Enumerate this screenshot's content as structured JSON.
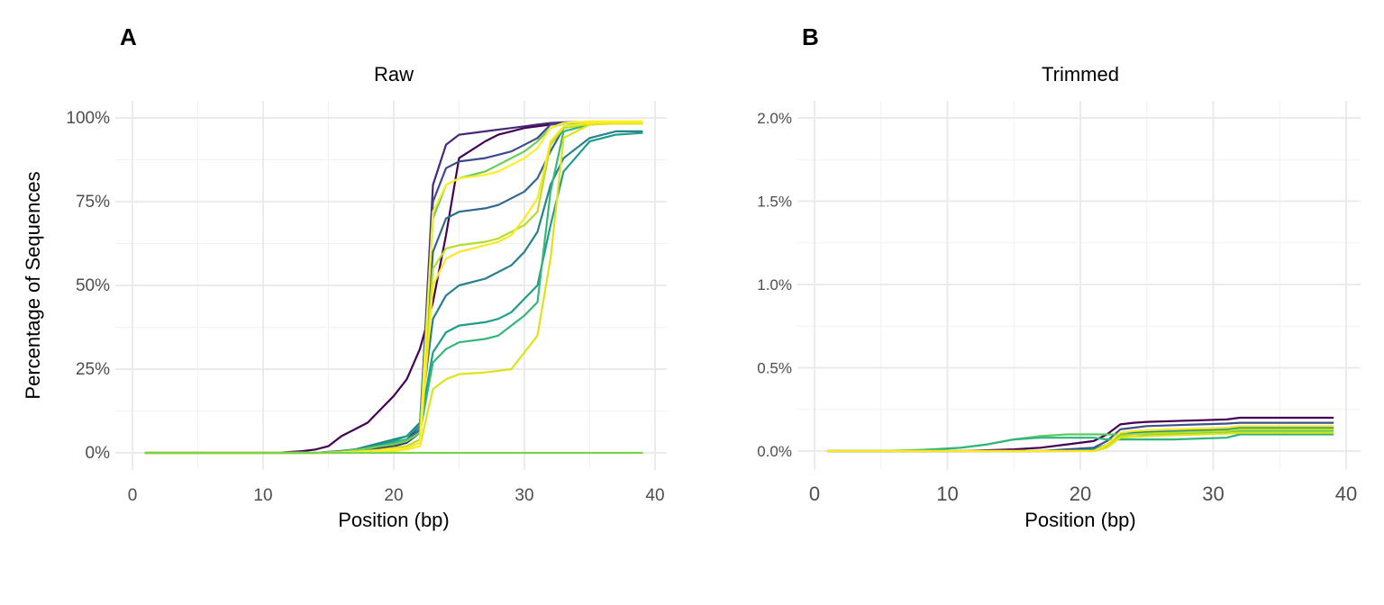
{
  "chart_data": [
    {
      "panel": "A",
      "type": "line",
      "title": "Raw",
      "xlabel": "Position (bp)",
      "ylabel": "Percentage of Sequences",
      "xlim": [
        0,
        41
      ],
      "ylim": [
        0,
        100
      ],
      "x_ticks": [
        0,
        10,
        20,
        30,
        40
      ],
      "y_ticks": [
        0,
        25,
        50,
        75,
        100
      ],
      "y_tick_labels": [
        "0%",
        "25%",
        "50%",
        "75%",
        "100%"
      ],
      "grid": true,
      "legend": "none",
      "x": [
        1,
        3,
        5,
        7,
        9,
        11,
        13,
        14,
        15,
        16,
        17,
        18,
        19,
        20,
        21,
        22,
        23,
        24,
        25,
        27,
        28,
        29,
        30,
        31,
        32,
        33,
        35,
        37,
        39
      ],
      "series": [
        {
          "color": "#440154",
          "values": [
            0,
            0,
            0,
            0,
            0,
            0,
            0.5,
            1,
            2,
            5,
            7,
            9,
            13,
            17,
            22,
            31,
            45,
            65,
            88,
            93,
            95,
            96,
            97,
            97.5,
            98,
            98.5,
            98.6,
            98.6,
            98.6
          ]
        },
        {
          "color": "#482878",
          "values": [
            0,
            0,
            0,
            0,
            0,
            0,
            0,
            0,
            0.2,
            0.4,
            0.6,
            1,
            1.5,
            2,
            3,
            6,
            80,
            92,
            95,
            96,
            96.5,
            97,
            97.5,
            98,
            98.5,
            98.7,
            98.8,
            98.8,
            98.8
          ]
        },
        {
          "color": "#3e4a89",
          "values": [
            0,
            0,
            0,
            0,
            0,
            0,
            0,
            0,
            0.3,
            0.6,
            1,
            1.5,
            2,
            3,
            4,
            8,
            75,
            85,
            87,
            88,
            89,
            90,
            92,
            94,
            98,
            98.5,
            98.7,
            98.7,
            98.7
          ]
        },
        {
          "color": "#31688e",
          "values": [
            0,
            0,
            0,
            0,
            0,
            0,
            0,
            0,
            0.2,
            0.5,
            1,
            1.5,
            2,
            2.5,
            3.5,
            7,
            60,
            70,
            72,
            73,
            74,
            76,
            78,
            82,
            90,
            97,
            98.5,
            98.6,
            98.6
          ]
        },
        {
          "color": "#26828e",
          "values": [
            0,
            0,
            0,
            0,
            0,
            0,
            0,
            0,
            0.2,
            0.5,
            1,
            2,
            3,
            4,
            5,
            9,
            40,
            47,
            50,
            52,
            54,
            56,
            60,
            66,
            80,
            88,
            94,
            96,
            96
          ]
        },
        {
          "color": "#1f9e89",
          "values": [
            0,
            0,
            0,
            0,
            0,
            0,
            0,
            0,
            0.2,
            0.4,
            1,
            1.5,
            2.5,
            3.5,
            5,
            8,
            30,
            36,
            38,
            39,
            40,
            42,
            46,
            50,
            68,
            84,
            93,
            95,
            95.5
          ]
        },
        {
          "color": "#35b779",
          "values": [
            0,
            0,
            0,
            0,
            0,
            0,
            0,
            0,
            0.2,
            0.4,
            0.8,
            1.5,
            2,
            3,
            4,
            6,
            27,
            31,
            33,
            34,
            35,
            38,
            41,
            45,
            78,
            96,
            98,
            98.5,
            98.5
          ]
        },
        {
          "color": "#6ece58",
          "values": [
            0,
            0,
            0,
            0,
            0,
            0,
            0,
            0,
            0.2,
            0.4,
            0.8,
            1.2,
            2,
            2.5,
            3.5,
            6,
            70,
            80,
            82,
            84,
            86,
            88,
            90,
            93,
            97,
            98.3,
            98.5,
            98.5,
            98.5
          ]
        },
        {
          "color": "#b5de2b",
          "values": [
            0,
            0,
            0,
            0,
            0,
            0,
            0,
            0,
            0.1,
            0.2,
            0.4,
            0.6,
            1,
            1.5,
            2,
            4,
            55,
            61,
            62,
            63,
            64,
            66,
            68,
            72,
            92,
            97,
            98.2,
            98.3,
            98.3
          ]
        },
        {
          "color": "#dde318",
          "values": [
            0,
            0,
            0,
            0,
            0,
            0,
            0,
            0,
            0,
            0,
            0,
            0.2,
            0.4,
            0.6,
            1,
            2,
            19,
            22,
            23.5,
            24,
            24.5,
            25,
            30,
            35,
            58,
            94,
            98,
            98.3,
            98.3
          ]
        },
        {
          "color": "#fde725",
          "values": [
            0,
            0,
            0,
            0,
            0,
            0,
            0,
            0,
            0,
            0.2,
            0.3,
            0.5,
            0.8,
            1.2,
            1.5,
            3,
            50,
            58,
            60,
            62,
            63,
            65,
            70,
            76,
            93,
            97.5,
            98.5,
            98.6,
            98.6
          ]
        },
        {
          "color": "#ffef2a",
          "values": [
            0,
            0,
            0,
            0,
            0,
            0,
            0,
            0,
            0,
            0.1,
            0.2,
            0.3,
            0.5,
            0.8,
            1,
            2,
            72,
            80,
            82,
            83,
            84,
            86,
            88,
            91,
            97,
            98.5,
            99,
            99,
            99
          ]
        },
        {
          "color": "#7ad151",
          "values": [
            0,
            0,
            0,
            0,
            0,
            0,
            0,
            0,
            0,
            0,
            0,
            0,
            0,
            0,
            0,
            0,
            0,
            0,
            0,
            0,
            0,
            0,
            0,
            0,
            0,
            0,
            0,
            0,
            0
          ]
        }
      ]
    },
    {
      "panel": "B",
      "type": "line",
      "title": "Trimmed",
      "xlabel": "Position (bp)",
      "ylabel": "",
      "xlim": [
        0,
        41
      ],
      "ylim": [
        0,
        2
      ],
      "x_ticks": [
        0,
        10,
        20,
        30,
        40
      ],
      "y_ticks": [
        0,
        0.5,
        1,
        1.5,
        2
      ],
      "y_tick_labels": [
        "0.0%",
        "0.5%",
        "1.0%",
        "1.5%",
        "2.0%"
      ],
      "grid": true,
      "legend": "none",
      "x": [
        1,
        3,
        5,
        7,
        9,
        11,
        13,
        15,
        17,
        19,
        21,
        22,
        23,
        24,
        25,
        27,
        29,
        31,
        32,
        33,
        35,
        37,
        39
      ],
      "series": [
        {
          "color": "#440154",
          "values": [
            0,
            0,
            0,
            0,
            0,
            0,
            0.005,
            0.01,
            0.02,
            0.04,
            0.06,
            0.1,
            0.16,
            0.17,
            0.175,
            0.18,
            0.185,
            0.19,
            0.2,
            0.2,
            0.2,
            0.2,
            0.2
          ]
        },
        {
          "color": "#3b528b",
          "values": [
            0,
            0,
            0,
            0,
            0,
            0,
            0,
            0,
            0,
            0.01,
            0.02,
            0.06,
            0.13,
            0.14,
            0.15,
            0.155,
            0.16,
            0.165,
            0.17,
            0.17,
            0.17,
            0.17,
            0.17
          ]
        },
        {
          "color": "#21918c",
          "values": [
            0,
            0,
            0,
            0,
            0,
            0,
            0,
            0,
            0,
            0,
            0.01,
            0.04,
            0.1,
            0.11,
            0.115,
            0.12,
            0.125,
            0.13,
            0.14,
            0.14,
            0.14,
            0.14,
            0.14
          ]
        },
        {
          "color": "#5ec962",
          "values": [
            0,
            0,
            0,
            0.005,
            0.01,
            0.02,
            0.04,
            0.07,
            0.09,
            0.1,
            0.1,
            0.1,
            0.1,
            0.1,
            0.1,
            0.105,
            0.11,
            0.115,
            0.12,
            0.12,
            0.12,
            0.12,
            0.12
          ]
        },
        {
          "color": "#2fb47c",
          "values": [
            0,
            0,
            0,
            0,
            0.01,
            0.02,
            0.04,
            0.07,
            0.08,
            0.08,
            0.08,
            0.07,
            0.07,
            0.07,
            0.07,
            0.07,
            0.075,
            0.08,
            0.1,
            0.1,
            0.1,
            0.1,
            0.1
          ]
        },
        {
          "color": "#b8de29",
          "values": [
            0,
            0,
            0,
            0,
            0,
            0,
            0,
            0,
            0,
            0,
            0,
            0.03,
            0.09,
            0.1,
            0.105,
            0.11,
            0.115,
            0.12,
            0.13,
            0.13,
            0.13,
            0.13,
            0.13
          ]
        },
        {
          "color": "#dde318",
          "values": [
            0,
            0,
            0,
            0,
            0,
            0,
            0,
            0,
            0,
            0,
            0,
            0.02,
            0.08,
            0.085,
            0.09,
            0.095,
            0.1,
            0.105,
            0.11,
            0.11,
            0.11,
            0.11,
            0.11
          ]
        },
        {
          "color": "#fde725",
          "values": [
            0,
            0,
            0,
            0,
            0,
            0,
            0,
            0,
            0,
            0,
            0,
            0.04,
            0.11,
            0.12,
            0.125,
            0.13,
            0.135,
            0.14,
            0.15,
            0.15,
            0.15,
            0.15,
            0.15
          ]
        }
      ]
    }
  ]
}
